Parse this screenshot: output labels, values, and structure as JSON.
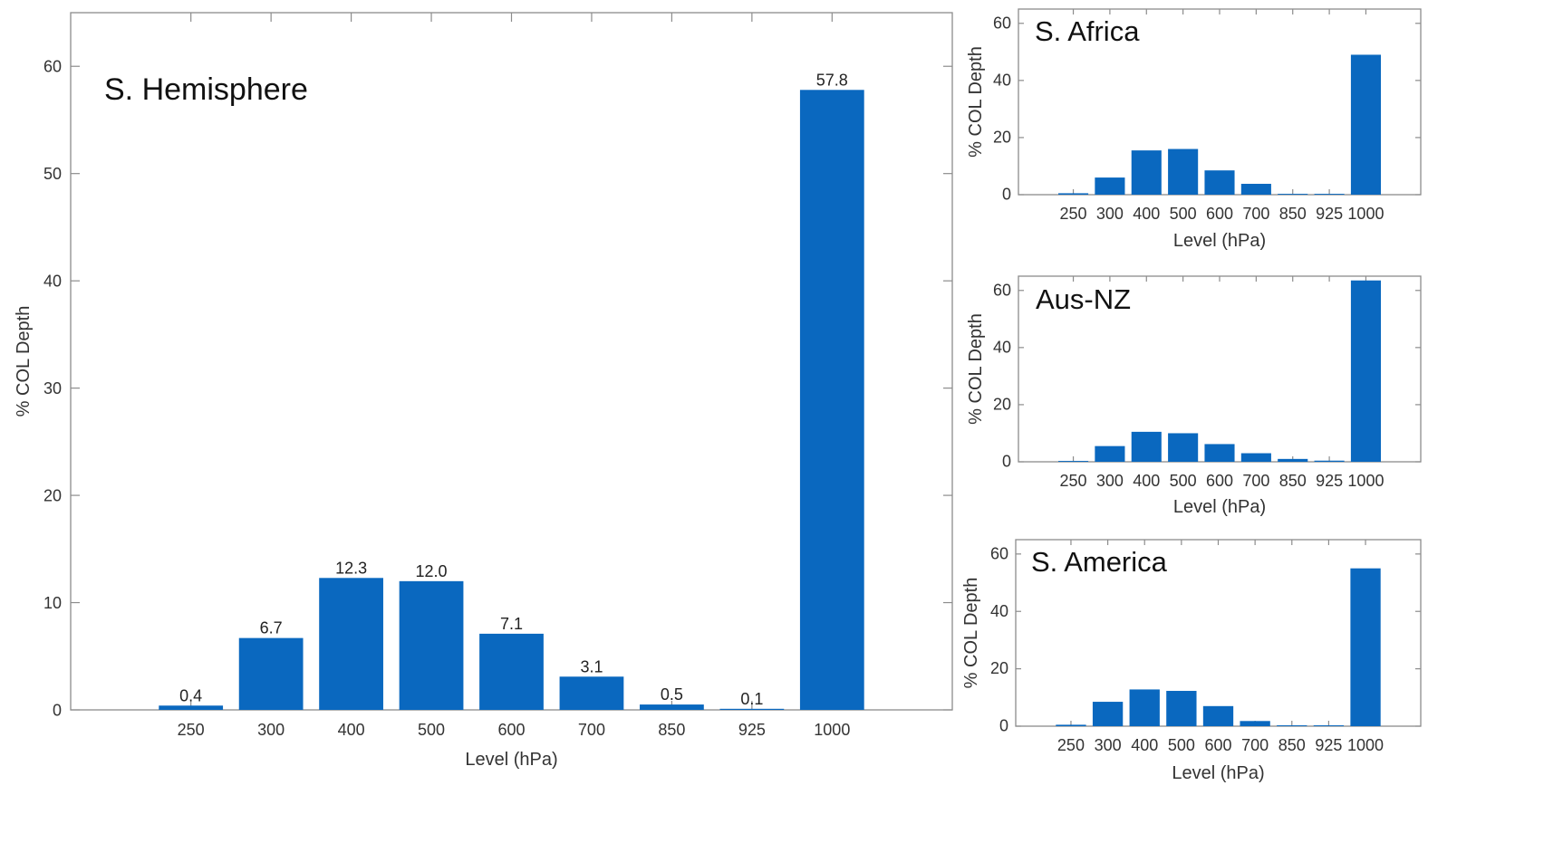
{
  "chart_data": [
    {
      "type": "bar",
      "title": "S. Hemisphere",
      "xlabel": "Level (hPa)",
      "ylabel": "% COL Depth",
      "categories": [
        "250",
        "300",
        "400",
        "500",
        "600",
        "700",
        "850",
        "925",
        "1000"
      ],
      "values": [
        0.4,
        6.7,
        12.3,
        12.0,
        7.1,
        3.1,
        0.5,
        0.1,
        57.8
      ],
      "data_labels": [
        "0.4",
        "6.7",
        "12.3",
        "12.0",
        "7.1",
        "3.1",
        "0.5",
        "0.1",
        "57.8"
      ],
      "ylim": [
        0,
        65
      ],
      "yticks": [
        0,
        10,
        20,
        30,
        40,
        50,
        60
      ],
      "color": "#0a68bf",
      "grid": false
    },
    {
      "type": "bar",
      "title": "S. Africa",
      "xlabel": "Level (hPa)",
      "ylabel": "% COL Depth",
      "categories": [
        "250",
        "300",
        "400",
        "500",
        "600",
        "700",
        "850",
        "925",
        "1000"
      ],
      "values": [
        0.5,
        6.0,
        15.5,
        16.0,
        8.5,
        3.8,
        0.3,
        0.3,
        49.0
      ],
      "ylim": [
        0,
        65
      ],
      "yticks": [
        0,
        20,
        40,
        60
      ],
      "color": "#0a68bf",
      "grid": false
    },
    {
      "type": "bar",
      "title": "Aus-NZ",
      "xlabel": "Level (hPa)",
      "ylabel": "% COL Depth",
      "categories": [
        "250",
        "300",
        "400",
        "500",
        "600",
        "700",
        "850",
        "925",
        "1000"
      ],
      "values": [
        0.3,
        5.5,
        10.5,
        10.0,
        6.2,
        3.0,
        1.0,
        0.4,
        63.5
      ],
      "ylim": [
        0,
        65
      ],
      "yticks": [
        0,
        20,
        40,
        60
      ],
      "color": "#0a68bf",
      "grid": false
    },
    {
      "type": "bar",
      "title": "S. America",
      "xlabel": "Level (hPa)",
      "ylabel": "% COL Depth",
      "categories": [
        "250",
        "300",
        "400",
        "500",
        "600",
        "700",
        "850",
        "925",
        "1000"
      ],
      "values": [
        0.5,
        8.5,
        12.8,
        12.3,
        7.0,
        1.8,
        0.3,
        0.3,
        55.0
      ],
      "ylim": [
        0,
        65
      ],
      "yticks": [
        0,
        20,
        40,
        60
      ],
      "color": "#0a68bf",
      "grid": false
    }
  ]
}
